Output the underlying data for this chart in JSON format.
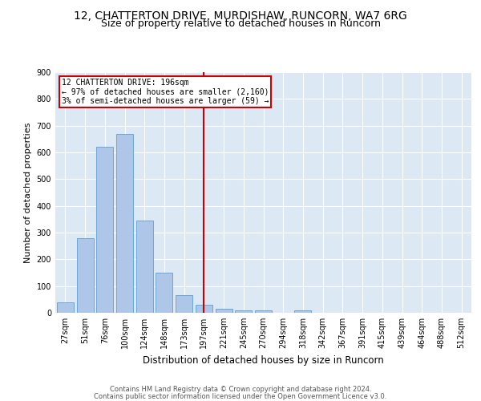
{
  "title1": "12, CHATTERTON DRIVE, MURDISHAW, RUNCORN, WA7 6RG",
  "title2": "Size of property relative to detached houses in Runcorn",
  "xlabel": "Distribution of detached houses by size in Runcorn",
  "ylabel": "Number of detached properties",
  "categories": [
    "27sqm",
    "51sqm",
    "76sqm",
    "100sqm",
    "124sqm",
    "148sqm",
    "173sqm",
    "197sqm",
    "221sqm",
    "245sqm",
    "270sqm",
    "294sqm",
    "318sqm",
    "342sqm",
    "367sqm",
    "391sqm",
    "415sqm",
    "439sqm",
    "464sqm",
    "488sqm",
    "512sqm"
  ],
  "values": [
    40,
    280,
    620,
    670,
    345,
    150,
    65,
    30,
    15,
    10,
    8,
    0,
    8,
    0,
    0,
    0,
    0,
    0,
    0,
    0,
    0
  ],
  "bar_color": "#aec6e8",
  "bar_edge_color": "#5a9fd4",
  "vline_x_index": 7,
  "vline_color": "#cc0000",
  "annotation_line1": "12 CHATTERTON DRIVE: 196sqm",
  "annotation_line2": "← 97% of detached houses are smaller (2,160)",
  "annotation_line3": "3% of semi-detached houses are larger (59) →",
  "annotation_box_color": "#cc0000",
  "annotation_text_color": "#000000",
  "background_color": "#dde8f5",
  "ylim": [
    0,
    900
  ],
  "yticks": [
    0,
    100,
    200,
    300,
    400,
    500,
    600,
    700,
    800,
    900
  ],
  "grid_color": "#ffffff",
  "footer1": "Contains HM Land Registry data © Crown copyright and database right 2024.",
  "footer2": "Contains public sector information licensed under the Open Government Licence v3.0.",
  "title1_fontsize": 10,
  "title2_fontsize": 9,
  "tick_fontsize": 7,
  "ylabel_fontsize": 8,
  "xlabel_fontsize": 8.5,
  "footer_fontsize": 6
}
